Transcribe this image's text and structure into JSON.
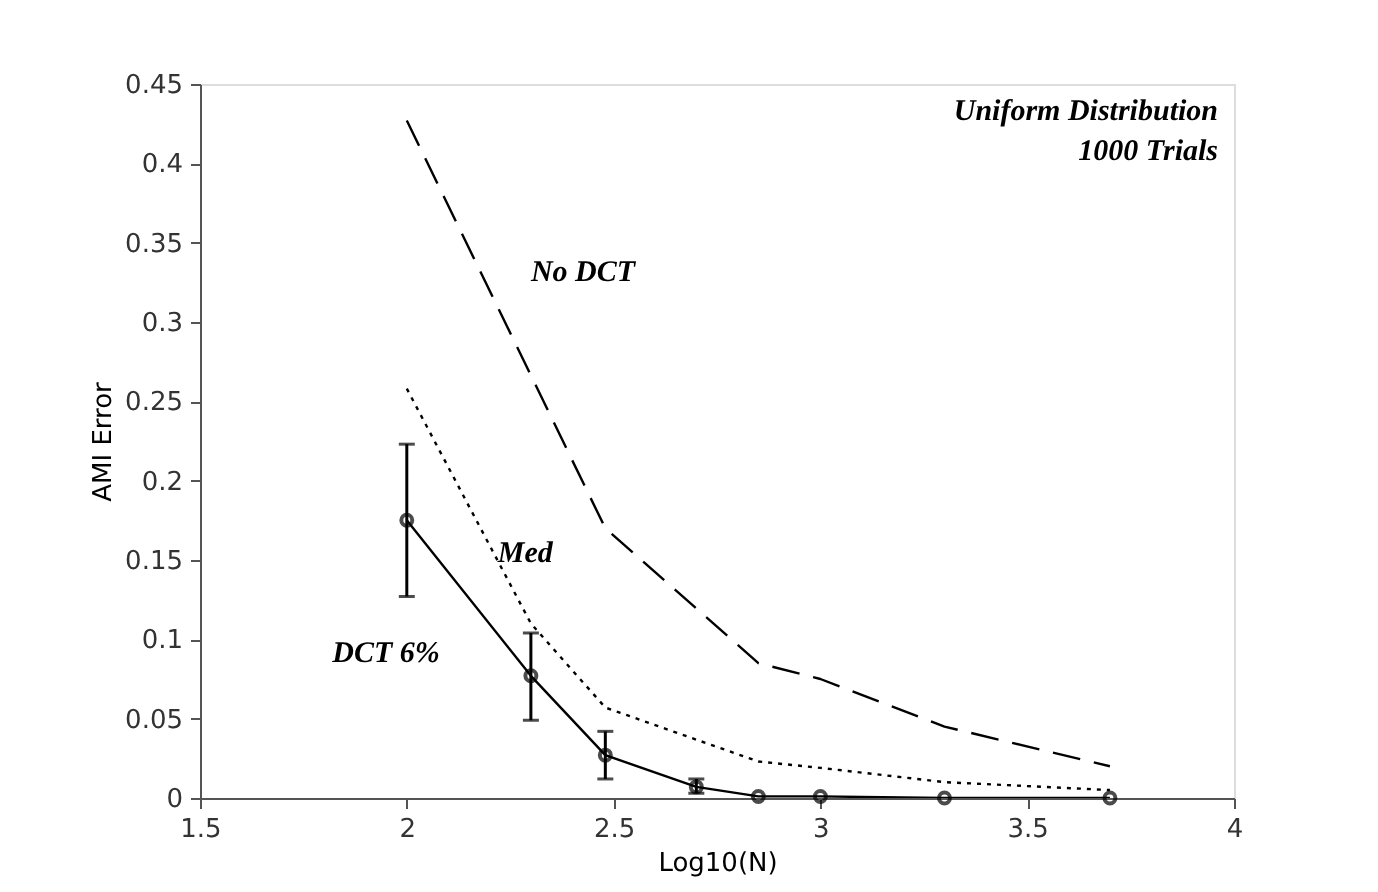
{
  "chart_data": {
    "type": "line",
    "xlabel": "Log10(N)",
    "ylabel": "AMI Error",
    "xlim": [
      1.5,
      4
    ],
    "xticks": [
      1.5,
      2,
      2.5,
      3,
      3.5,
      4
    ],
    "ylim": [
      0,
      0.45
    ],
    "yticks": [
      0,
      0.05,
      0.1,
      0.15,
      0.2,
      0.25,
      0.3,
      0.35,
      0.4,
      0.45
    ],
    "grid": false,
    "annotations": [
      "Uniform Distribution",
      "1000 Trials"
    ],
    "series": [
      {
        "name": "No DCT",
        "color": "#000000",
        "line_style": "dashed",
        "marker": "none",
        "x": [
          2,
          2.48,
          2.85,
          3,
          3.3,
          3.7
        ],
        "values": [
          0.427,
          0.17,
          0.085,
          0.075,
          0.045,
          0.02
        ]
      },
      {
        "name": "Med",
        "color": "#000000",
        "line_style": "dotted",
        "marker": "none",
        "x": [
          2,
          2.3,
          2.48,
          2.85,
          3,
          3.3,
          3.7
        ],
        "values": [
          0.258,
          0.11,
          0.057,
          0.023,
          0.019,
          0.01,
          0.005
        ]
      },
      {
        "name": "DCT 6%",
        "color": "#000000",
        "line_style": "solid",
        "marker": "circle",
        "x": [
          2,
          2.3,
          2.48,
          2.7,
          2.85,
          3,
          3.3,
          3.7
        ],
        "values": [
          0.175,
          0.077,
          0.027,
          0.007,
          0.001,
          0.001,
          0,
          0
        ],
        "errors": [
          [
            0.127,
            0.223
          ],
          [
            0.049,
            0.104
          ],
          [
            0.012,
            0.042
          ],
          [
            0.003,
            0.012
          ],
          null,
          null,
          null,
          null
        ]
      }
    ]
  }
}
